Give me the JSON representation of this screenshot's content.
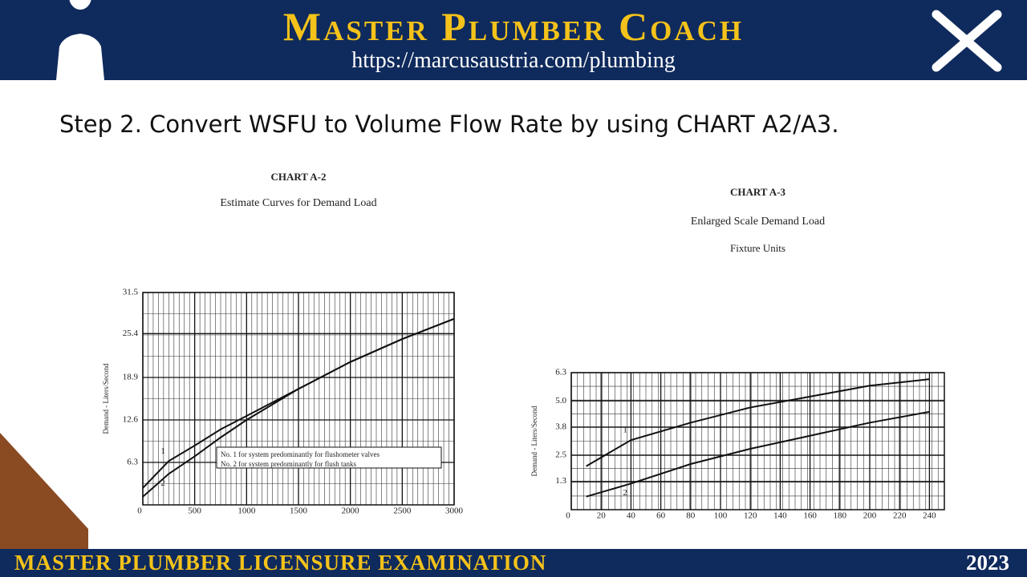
{
  "header": {
    "title": "Master Plumber Coach",
    "url": "https://marcusaustria.com/plumbing"
  },
  "step": "Step 2. Convert WSFU to Volume Flow Rate by using CHART A2/A3.",
  "footer": {
    "title": "MASTER PLUMBER LICENSURE EXAMINATION",
    "year": "2023"
  },
  "chart_data": [
    {
      "type": "line",
      "title": "CHART A-2",
      "subtitle": "Estimate Curves for Demand Load",
      "y_label": "Demand - Liters/Second",
      "x": [
        0,
        250,
        500,
        750,
        1000,
        1500,
        2000,
        2500,
        3000
      ],
      "series": [
        {
          "name": "No. 1 for system predominantly for flushometer valves",
          "label": "1",
          "color": "#111111",
          "values": [
            2.5,
            6.5,
            8.8,
            11.2,
            13.2,
            17.2,
            21.2,
            24.6,
            27.6
          ]
        },
        {
          "name": "No. 2 for system predominantly for flush tanks",
          "label": "2",
          "color": "#111111",
          "values": [
            1.2,
            4.6,
            7.2,
            10,
            12.6,
            17.2,
            21.2,
            24.6,
            27.6
          ]
        }
      ],
      "xlim": [
        0,
        3000
      ],
      "xticks": [
        0,
        500,
        1000,
        1500,
        2000,
        2500,
        3000
      ],
      "ylim": [
        0,
        31.5
      ],
      "yticks": [
        6.3,
        12.6,
        18.9,
        25.4,
        31.5
      ],
      "grid": true
    },
    {
      "type": "line",
      "title": "CHART A-3",
      "subtitle": "Enlarged Scale Demand Load",
      "x_label": "Fixture Units",
      "y_label": "Demand - Liters/Second",
      "x": [
        10,
        40,
        80,
        120,
        160,
        200,
        240
      ],
      "series": [
        {
          "label": "1",
          "color": "#111111",
          "values": [
            2.0,
            3.2,
            4.0,
            4.7,
            5.2,
            5.7,
            6.0
          ]
        },
        {
          "label": "2",
          "color": "#111111",
          "values": [
            0.6,
            1.2,
            2.1,
            2.8,
            3.4,
            4.0,
            4.5
          ]
        }
      ],
      "xlim": [
        0,
        250
      ],
      "xticks": [
        0,
        20,
        40,
        60,
        80,
        100,
        120,
        140,
        160,
        180,
        200,
        220,
        240
      ],
      "ylim": [
        0,
        6.3
      ],
      "yticks": [
        1.3,
        2.5,
        3.8,
        {
          "value": 5,
          "label": "5.0"
        },
        6.3
      ],
      "grid": true
    }
  ]
}
